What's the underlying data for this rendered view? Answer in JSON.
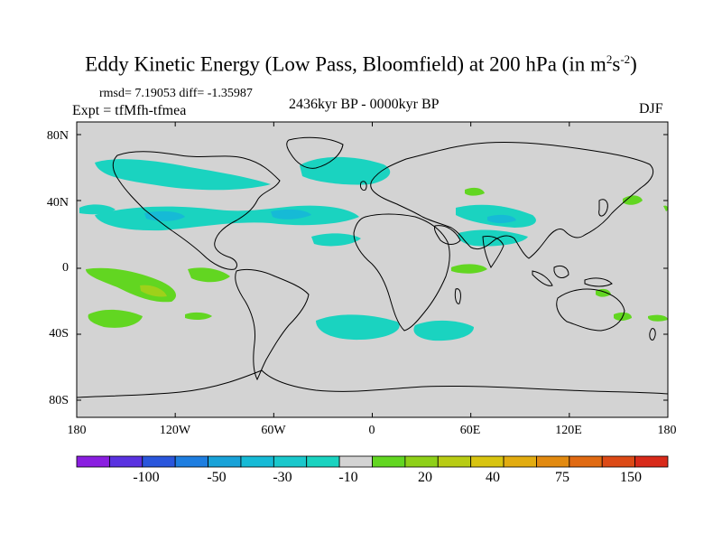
{
  "title": {
    "main": "Eddy Kinetic Energy (Low Pass, Bloomfield) at 200 hPa (in m",
    "sup1": "2",
    "mid": "s",
    "sup2": "-2",
    "end": ")"
  },
  "stats": {
    "rmsd": "rmsd= 7.19053 diff= -1.35987",
    "expt": "Expt = tfMfh-tfmea",
    "period": "2436kyr BP - 0000kyr BP",
    "season": "DJF"
  },
  "map": {
    "lat_labels": [
      "80N",
      "40N",
      "0",
      "40S",
      "80S"
    ],
    "lon_labels": [
      "180",
      "120W",
      "60W",
      "0",
      "60E",
      "120E",
      "180"
    ],
    "colors": {
      "ocean_land": "#d3d3d3",
      "neg_10": "#1ad3c0",
      "neg_30": "#16bad6",
      "pos_20": "#62d621",
      "pos_30": "#9ed11a",
      "coast": "#000000"
    }
  },
  "colorbar": {
    "colors": [
      "#8a1ee0",
      "#5a32e0",
      "#2a56dc",
      "#1e7ee0",
      "#18a2d8",
      "#16bad6",
      "#1ac8cc",
      "#1ad3c0",
      "#d3d3d3",
      "#62d621",
      "#8ed018",
      "#b8cc14",
      "#d8c410",
      "#e2ac10",
      "#e28a10",
      "#e06a12",
      "#dc4a16",
      "#d82a1a"
    ],
    "labels": [
      "-100",
      "-50",
      "-30",
      "-10",
      "20",
      "40",
      "75",
      "150"
    ]
  }
}
